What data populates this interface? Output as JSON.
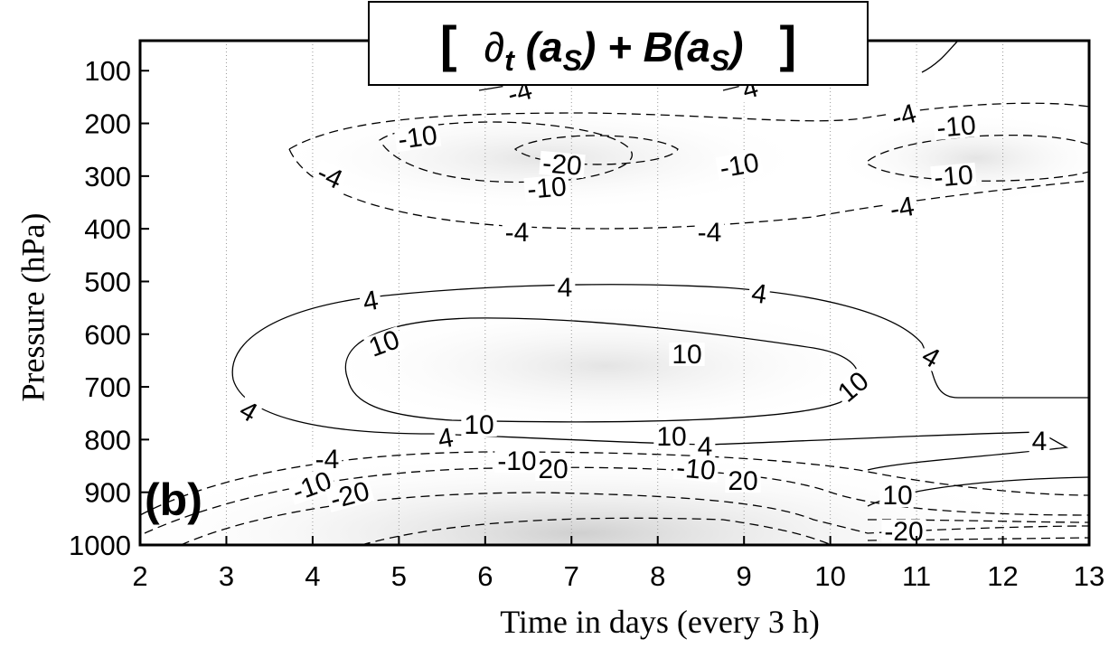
{
  "chart_data": {
    "type": "contour",
    "title_parts": [
      "[",
      "∂",
      "t",
      " (a",
      "S",
      ") + B(a",
      "S",
      ")",
      "]"
    ],
    "panel_label": "(b)",
    "x_label": "Time in days (every 3 h)",
    "y_label": "Pressure (hPa)",
    "xlim": [
      2,
      13
    ],
    "xticks": [
      2,
      3,
      4,
      5,
      6,
      7,
      8,
      9,
      10,
      11,
      12,
      13
    ],
    "ylim": [
      1000,
      43
    ],
    "yticks": [
      100,
      200,
      300,
      400,
      500,
      600,
      700,
      800,
      900,
      1000
    ],
    "grid": true,
    "contour_labels": [
      -4,
      4,
      -4,
      -10,
      -10,
      -4,
      -20,
      -10,
      -10,
      -10,
      -4,
      -4,
      -4,
      4,
      4,
      4,
      10,
      10,
      4,
      4,
      10,
      10,
      4,
      10,
      4,
      4,
      -4,
      -10,
      20,
      -10,
      -20,
      -10,
      20,
      10,
      -20
    ]
  }
}
